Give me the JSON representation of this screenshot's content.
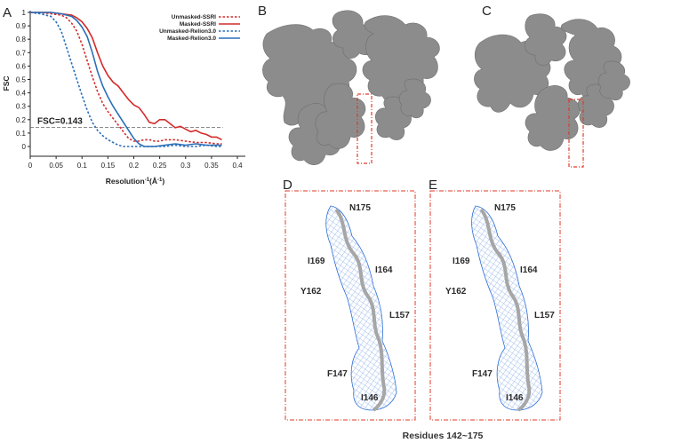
{
  "panels": {
    "a": "A",
    "b": "B",
    "c": "C",
    "d": "D",
    "e": "E"
  },
  "chart_data": {
    "type": "line",
    "ylabel": "FSC",
    "xlabel_main": "Resolution",
    "xlabel_sup": "-1",
    "xlabel_unit": "(Å",
    "xlabel_unit_sup": "-1",
    "xlabel_close": ")",
    "xlim": [
      0,
      0.4
    ],
    "ylim": [
      -0.05,
      1
    ],
    "x_ticks": [
      0,
      0.05,
      0.1,
      0.15,
      0.2,
      0.25,
      0.3,
      0.35,
      0.4
    ],
    "x_tick_labels": [
      "0",
      "0.05",
      "0.1",
      "0.15",
      "0.2",
      "0.25",
      "0.3",
      "0.35",
      "0.4"
    ],
    "y_ticks": [
      0,
      0.1,
      0.2,
      0.3,
      0.4,
      0.5,
      0.6,
      0.7,
      0.8,
      0.9,
      1
    ],
    "y_tick_labels": [
      "0",
      "0.1",
      "0.2",
      "0.3",
      "0.4",
      "0.5",
      "0.6",
      "0.7",
      "0.8",
      "0.9",
      "1"
    ],
    "grid": false,
    "legend_position": "top-right",
    "threshold": {
      "value": 0.143,
      "label": "FSC=0.143",
      "color": "#666666"
    },
    "series": [
      {
        "name": "Unmasked-SSRI",
        "color": "#d42a2a",
        "dash": true,
        "x": [
          0.0,
          0.02,
          0.04,
          0.06,
          0.07,
          0.08,
          0.09,
          0.1,
          0.11,
          0.12,
          0.13,
          0.14,
          0.15,
          0.16,
          0.17,
          0.18,
          0.19,
          0.2,
          0.21,
          0.22,
          0.23,
          0.24,
          0.25,
          0.26,
          0.28,
          0.3,
          0.32,
          0.34,
          0.36,
          0.37
        ],
        "y": [
          1.0,
          1.0,
          0.99,
          0.98,
          0.96,
          0.92,
          0.86,
          0.76,
          0.64,
          0.52,
          0.41,
          0.32,
          0.26,
          0.21,
          0.16,
          0.11,
          0.06,
          0.04,
          0.04,
          0.05,
          0.05,
          0.04,
          0.04,
          0.05,
          0.05,
          0.04,
          0.03,
          0.03,
          0.02,
          0.02
        ]
      },
      {
        "name": "Masked-SSRI",
        "color": "#d42a2a",
        "dash": false,
        "x": [
          0.0,
          0.02,
          0.04,
          0.06,
          0.08,
          0.09,
          0.1,
          0.11,
          0.12,
          0.13,
          0.14,
          0.15,
          0.16,
          0.17,
          0.18,
          0.19,
          0.2,
          0.21,
          0.22,
          0.23,
          0.24,
          0.25,
          0.26,
          0.27,
          0.28,
          0.29,
          0.3,
          0.31,
          0.32,
          0.33,
          0.34,
          0.35,
          0.36,
          0.37
        ],
        "y": [
          1.0,
          1.0,
          1.0,
          0.99,
          0.98,
          0.96,
          0.93,
          0.88,
          0.81,
          0.7,
          0.6,
          0.53,
          0.48,
          0.45,
          0.4,
          0.35,
          0.31,
          0.29,
          0.24,
          0.18,
          0.17,
          0.2,
          0.2,
          0.17,
          0.14,
          0.15,
          0.13,
          0.11,
          0.12,
          0.1,
          0.09,
          0.07,
          0.07,
          0.05
        ]
      },
      {
        "name": "Unmasked-Relion3.0",
        "color": "#2a6fb8",
        "dash": true,
        "x": [
          0.0,
          0.02,
          0.04,
          0.05,
          0.06,
          0.07,
          0.08,
          0.09,
          0.1,
          0.11,
          0.12,
          0.13,
          0.14,
          0.15,
          0.16,
          0.17,
          0.18,
          0.2,
          0.22,
          0.24,
          0.26,
          0.28,
          0.3,
          0.32,
          0.34,
          0.36,
          0.37
        ],
        "y": [
          1.0,
          0.99,
          0.97,
          0.93,
          0.86,
          0.74,
          0.62,
          0.5,
          0.38,
          0.27,
          0.18,
          0.12,
          0.08,
          0.05,
          0.03,
          0.01,
          0.0,
          0.0,
          0.0,
          0.0,
          0.0,
          0.01,
          0.0,
          0.0,
          0.01,
          0.0,
          0.0
        ]
      },
      {
        "name": "Masked-Relion3.0",
        "color": "#2a6fb8",
        "dash": false,
        "x": [
          0.0,
          0.02,
          0.04,
          0.06,
          0.08,
          0.09,
          0.1,
          0.11,
          0.12,
          0.13,
          0.14,
          0.15,
          0.16,
          0.17,
          0.18,
          0.19,
          0.2,
          0.21,
          0.22,
          0.23,
          0.24,
          0.26,
          0.28,
          0.3,
          0.32,
          0.34,
          0.36,
          0.37
        ],
        "y": [
          1.0,
          1.0,
          1.0,
          0.99,
          0.97,
          0.94,
          0.89,
          0.82,
          0.7,
          0.56,
          0.45,
          0.37,
          0.3,
          0.24,
          0.18,
          0.12,
          0.06,
          0.02,
          0.0,
          0.0,
          0.0,
          0.01,
          0.02,
          0.01,
          0.02,
          0.01,
          0.01,
          0.01
        ]
      }
    ]
  },
  "residues_d": [
    "N175",
    "I169",
    "I164",
    "Y162",
    "L157",
    "F147",
    "I146"
  ],
  "residues_e": [
    "N175",
    "I169",
    "I164",
    "Y162",
    "L157",
    "F147",
    "I146"
  ],
  "caption": "Residues 142~175",
  "colors": {
    "map_gray": "#8c8c8c",
    "mesh_blue": "#2f6fd6",
    "box_red": "#e03a2a",
    "ribbon_gray": "#a6a6a6"
  }
}
